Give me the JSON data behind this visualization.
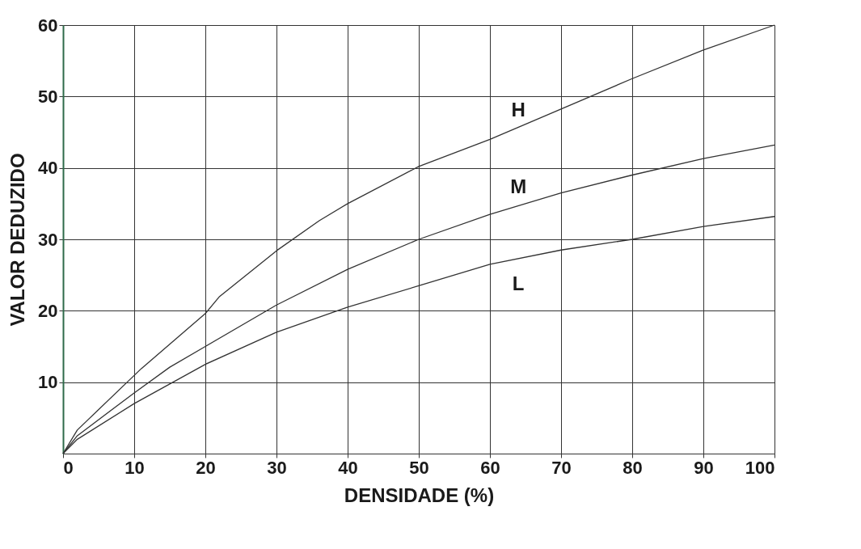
{
  "chart_data": {
    "type": "line",
    "xlabel": "DENSIDADE (%)",
    "ylabel": "VALOR DEDUZIDO",
    "xlim": [
      0,
      100
    ],
    "ylim": [
      0,
      60
    ],
    "xticks": [
      0,
      10,
      20,
      30,
      40,
      50,
      60,
      70,
      80,
      90,
      100
    ],
    "yticks": [
      10,
      20,
      30,
      40,
      50,
      60
    ],
    "grid": true,
    "line_style": "solid",
    "marker": "none",
    "series": [
      {
        "name": "H",
        "color": "#333333",
        "x": [
          0,
          2,
          11,
          20,
          22,
          30,
          36,
          40,
          50,
          60,
          68,
          80,
          90,
          100
        ],
        "values": [
          0,
          3.3,
          11.9,
          19.6,
          22,
          28.4,
          32.6,
          35,
          40.2,
          44,
          47.4,
          52.5,
          56.5,
          60
        ]
      },
      {
        "name": "M",
        "color": "#333333",
        "x": [
          0,
          2,
          10,
          15,
          20,
          30,
          40,
          50,
          60,
          70,
          80,
          90,
          100
        ],
        "values": [
          0,
          2.5,
          8.5,
          12.1,
          15,
          20.8,
          25.8,
          30,
          33.5,
          36.5,
          39,
          41.3,
          43.2
        ]
      },
      {
        "name": "L",
        "color": "#333333",
        "x": [
          0,
          2,
          10,
          20,
          30,
          40,
          50,
          60,
          70,
          80,
          90,
          100
        ],
        "values": [
          0,
          2,
          7,
          12.5,
          17,
          20.5,
          23.5,
          26.5,
          28.5,
          30,
          31.8,
          33.2
        ]
      }
    ]
  }
}
